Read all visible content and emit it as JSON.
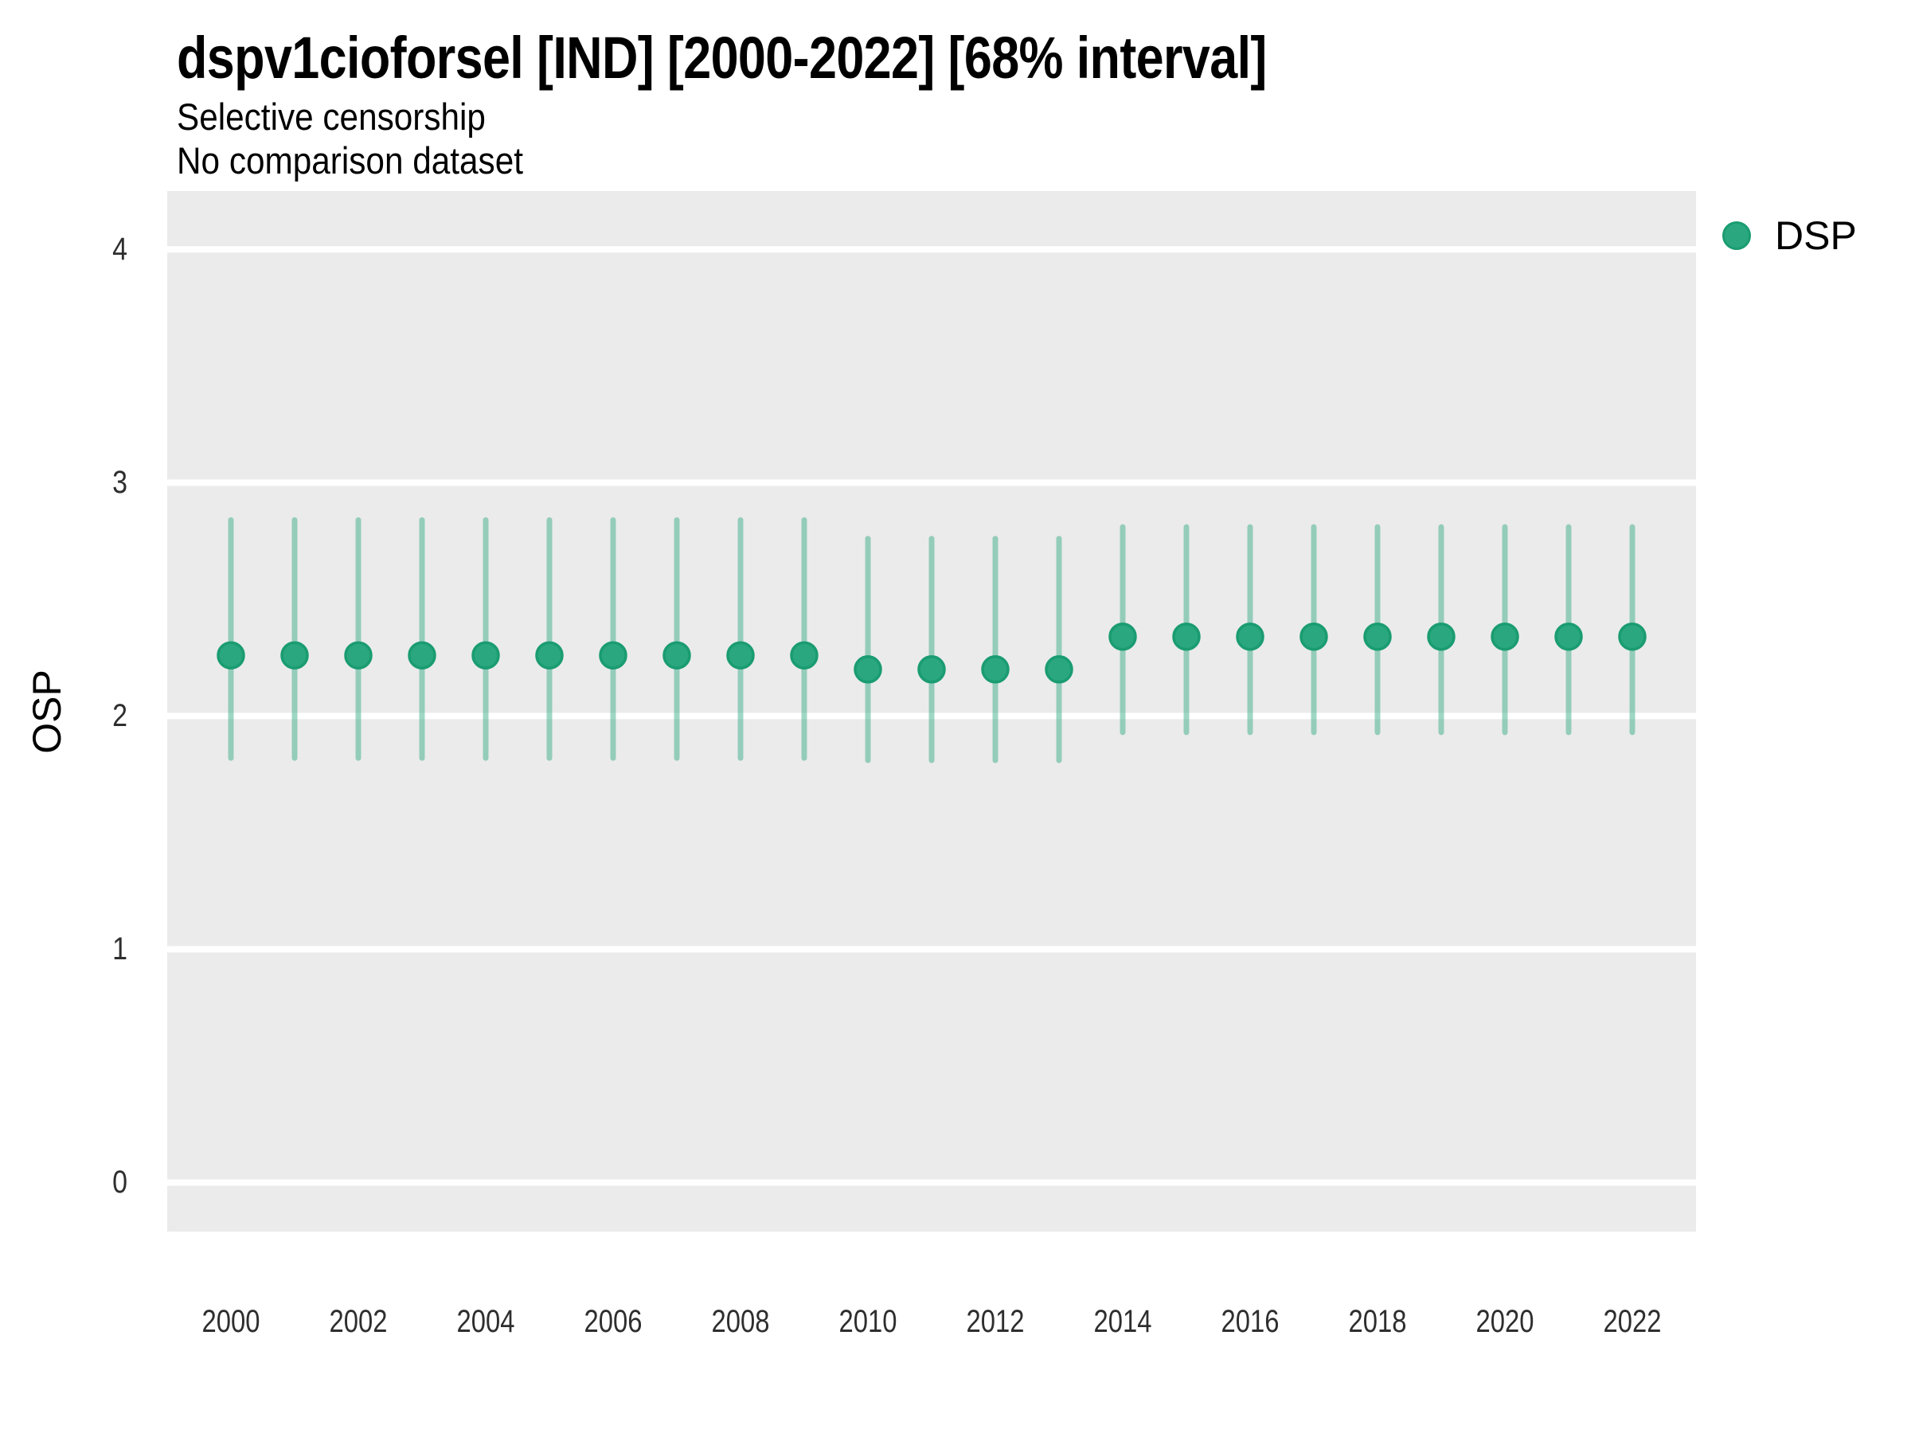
{
  "header": {
    "title": "dspv1cioforsel [IND] [2000-2022] [68% interval]",
    "subtitle1": "Selective censorship",
    "subtitle2": "No comparison dataset"
  },
  "legend": {
    "items": [
      {
        "label": "DSP",
        "color": "#2aa77e",
        "stroke": "#1a9c71"
      }
    ],
    "position": "right-top"
  },
  "colors": {
    "panel_background": "#EBEBEB",
    "gridline": "#ffffff",
    "point_fill": "#2aa77e",
    "point_stroke": "#1a9c71",
    "interval_bar": "rgba(42,167,126,0.45)",
    "axis_text": "#2e2e2e"
  },
  "chart_data": {
    "type": "scatter",
    "title": "dspv1cioforsel [IND] [2000-2022] [68% interval]",
    "subtitle": "Selective censorship",
    "note": "No comparison dataset",
    "xlabel": "",
    "ylabel": "OSP",
    "xlim": [
      1999,
      2023
    ],
    "ylim": [
      -0.21,
      4.25
    ],
    "x_ticks": [
      2000,
      2002,
      2004,
      2006,
      2008,
      2010,
      2012,
      2014,
      2016,
      2018,
      2020,
      2022
    ],
    "y_ticks": [
      0,
      1,
      2,
      3,
      4
    ],
    "grid": "major-horizontal-only",
    "legend_position": "right-top",
    "interval": "68%",
    "series": [
      {
        "name": "DSP",
        "x": [
          2000,
          2001,
          2002,
          2003,
          2004,
          2005,
          2006,
          2007,
          2008,
          2009,
          2010,
          2011,
          2012,
          2013,
          2014,
          2015,
          2016,
          2017,
          2018,
          2019,
          2020,
          2021,
          2022
        ],
        "estimate": [
          2.26,
          2.26,
          2.26,
          2.26,
          2.26,
          2.26,
          2.26,
          2.26,
          2.26,
          2.26,
          2.2,
          2.2,
          2.2,
          2.2,
          2.34,
          2.34,
          2.34,
          2.34,
          2.34,
          2.34,
          2.34,
          2.34,
          2.34
        ],
        "lower": [
          1.82,
          1.82,
          1.82,
          1.82,
          1.82,
          1.82,
          1.82,
          1.82,
          1.82,
          1.82,
          1.81,
          1.81,
          1.81,
          1.81,
          1.93,
          1.93,
          1.93,
          1.93,
          1.93,
          1.93,
          1.93,
          1.93,
          1.93
        ],
        "upper": [
          2.84,
          2.84,
          2.84,
          2.84,
          2.84,
          2.84,
          2.84,
          2.84,
          2.84,
          2.84,
          2.76,
          2.76,
          2.76,
          2.76,
          2.81,
          2.81,
          2.81,
          2.81,
          2.81,
          2.81,
          2.81,
          2.81,
          2.81
        ]
      }
    ]
  }
}
